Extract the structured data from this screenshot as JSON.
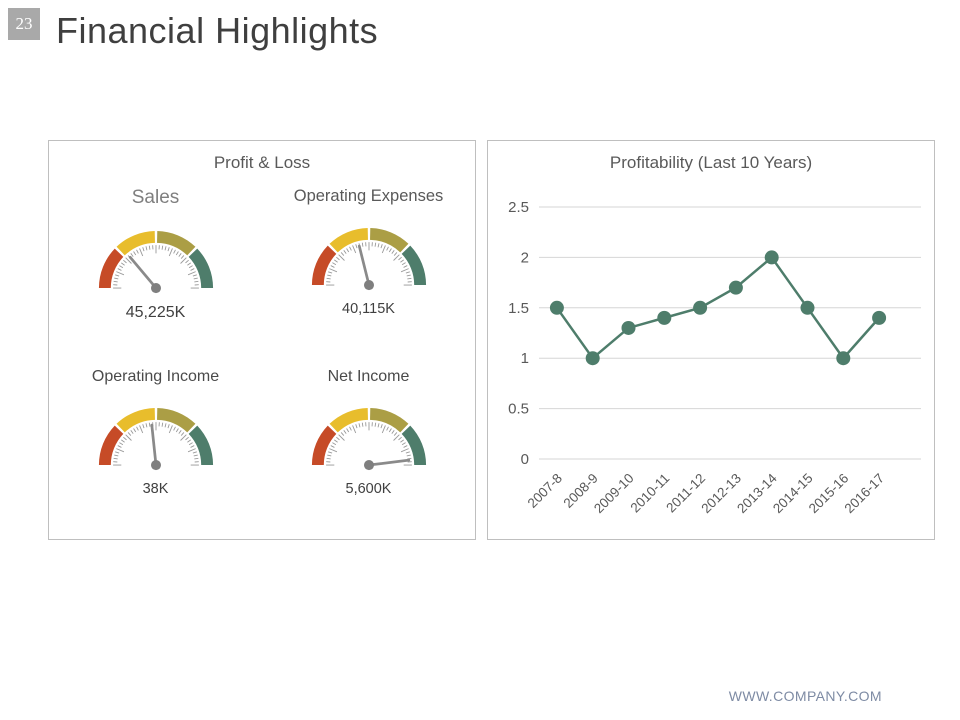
{
  "slide": {
    "number": "23",
    "title": "Financial Highlights",
    "footer": "WWW.COMPANY.COM"
  },
  "chart_data": [
    {
      "type": "gauge",
      "title": "Profit & Loss",
      "segment_colors": [
        "#c64b27",
        "#e8bd2c",
        "#ab9e45",
        "#4e7d6b"
      ],
      "needle_color": "#8a8a8a",
      "hub_color": "#7f7f7f",
      "gauges": [
        {
          "label": "Sales",
          "value": "45,225K",
          "needle_angle_deg": 130
        },
        {
          "label": "Operating Expenses",
          "value": "40,115K",
          "needle_angle_deg": 104
        },
        {
          "label": "Operating Income",
          "value": "38K",
          "needle_angle_deg": 96
        },
        {
          "label": "Net Income",
          "value": "5,600K",
          "needle_angle_deg": 7
        }
      ]
    },
    {
      "type": "line",
      "title": "Profitability (Last 10 Years)",
      "categories": [
        "2007-8",
        "2008-9",
        "2009-10",
        "2010-11",
        "2011-12",
        "2012-13",
        "2013-14",
        "2014-15",
        "2015-16",
        "2016-17"
      ],
      "values": [
        1.5,
        1,
        1.3,
        1.4,
        1.5,
        1.7,
        2,
        1.5,
        1,
        1.4
      ],
      "ylim": [
        0,
        2.5
      ],
      "yticks": [
        0,
        0.5,
        1,
        1.5,
        2,
        2.5
      ],
      "grid": true,
      "legend_position": "none",
      "line_color": "#4e7d6b",
      "marker_color": "#4e7d6b",
      "grid_color": "#d6d6d6",
      "tick_label_color": "#595959"
    }
  ]
}
